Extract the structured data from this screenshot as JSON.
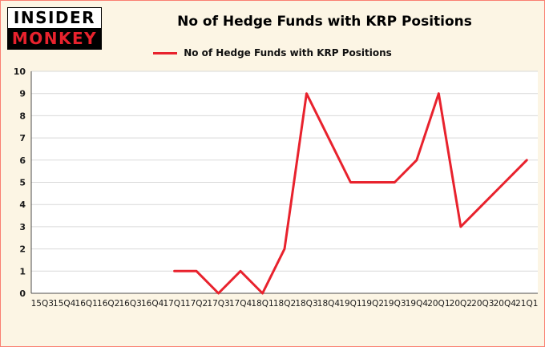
{
  "header": {
    "logo": {
      "line1": "INSIDER",
      "line2": "MONKEY"
    },
    "title": "No of Hedge Funds with KRP Positions"
  },
  "legend": {
    "label": "No of Hedge Funds with KRP Positions",
    "color": "#e8222d"
  },
  "colors": {
    "background": "#fcf5e4",
    "plot_background": "#ffffff",
    "border": "#fa8072",
    "gridline": "#d9d9d9",
    "axis": "#4d4d4d",
    "tick_text": "#1a1a1a",
    "line": "#e8222d"
  },
  "chart_data": {
    "type": "line",
    "title": "No of Hedge Funds with KRP Positions",
    "series_name": "No of Hedge Funds with KRP Positions",
    "categories": [
      "15Q3",
      "15Q4",
      "16Q1",
      "16Q2",
      "16Q3",
      "16Q4",
      "17Q1",
      "17Q2",
      "17Q3",
      "17Q4",
      "18Q1",
      "18Q2",
      "18Q3",
      "18Q4",
      "19Q1",
      "19Q2",
      "19Q3",
      "19Q4",
      "20Q1",
      "20Q2",
      "20Q3",
      "20Q4",
      "21Q1"
    ],
    "values": [
      null,
      null,
      null,
      null,
      null,
      null,
      1,
      1,
      0,
      1,
      0,
      2,
      9,
      7,
      5,
      5,
      5,
      6,
      9,
      3,
      4,
      5,
      6
    ],
    "xlabel": "",
    "ylabel": "",
    "ylim": [
      0,
      10
    ],
    "ytick_step": 1,
    "grid": true,
    "legend_position": "top",
    "line_color": "#e8222d",
    "line_width": 3
  }
}
